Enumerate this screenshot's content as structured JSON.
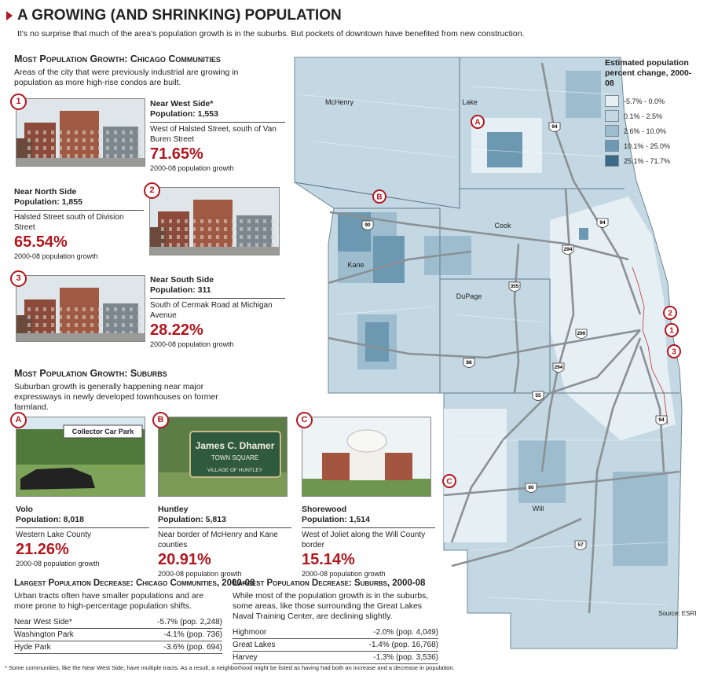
{
  "header": {
    "title": "A Growing (and Shrinking) Population",
    "subtitle": "It's no surprise that much of the area's population growth is in the suburbs. But pockets of downtown have benefited from new construction."
  },
  "chicago_growth": {
    "heading": "Most Population Growth: Chicago Communities",
    "description": "Areas of the city that were previously industrial are growing in population as more high-rise condos are built.",
    "items": [
      {
        "marker": "1",
        "name": "Near West Side*",
        "population": "Population: 1,553",
        "location": "West of Halsted Street, south of Van Buren Street",
        "growth": "71.65%",
        "growth_label": "2000-08 population growth"
      },
      {
        "marker": "2",
        "name": "Near North Side",
        "population": "Population: 1,855",
        "location": "Halsted Street south of Division Street",
        "growth": "65.54%",
        "growth_label": "2000-08 population growth"
      },
      {
        "marker": "3",
        "name": "Near South Side",
        "population": "Population: 311",
        "location": "South of Cermak Road at Michigan Avenue",
        "growth": "28.22%",
        "growth_label": "2000-08 population growth"
      }
    ]
  },
  "suburb_growth": {
    "heading": "Most Population Growth: Suburbs",
    "description": "Suburban growth is generally happening near major expressways in newly developed townhouses on former farmland.",
    "items": [
      {
        "marker": "A",
        "photo_text": [
          "Collector Car Park"
        ],
        "name": "Volo",
        "population": "Population: 8,018",
        "location": "Western Lake County",
        "growth": "21.26%",
        "growth_label": "2000-08 population growth"
      },
      {
        "marker": "B",
        "photo_text": [
          "James C. Dhamer",
          "TOWN SQUARE",
          "VILLAGE OF HUNTLEY"
        ],
        "name": "Huntley",
        "population": "Population: 5,813",
        "location": "Near border of McHenry and Kane counties",
        "growth": "20.91%",
        "growth_label": "2000-08 population growth"
      },
      {
        "marker": "C",
        "photo_text": [],
        "name": "Shorewood",
        "population": "Population: 1,514",
        "location": "West of Joliet along the Will County border",
        "growth": "15.14%",
        "growth_label": "2000-08 population growth"
      }
    ]
  },
  "chicago_decrease": {
    "heading": "Largest Population Decrease: Chicago Communities, 2000-08",
    "description": "Urban tracts often have smaller populations and are more prone to high-percentage population shifts.",
    "rows": [
      [
        "Near West Side*",
        "-5.7% (pop. 2,248)"
      ],
      [
        "Washington Park",
        "-4.1% (pop. 736)"
      ],
      [
        "Hyde Park",
        "-3.6% (pop. 694)"
      ]
    ]
  },
  "suburb_decrease": {
    "heading": "Largest Population Decrease: Suburbs, 2000-08",
    "description": "While most of the population growth is in the suburbs, some areas, like those surrounding the Great Lakes Naval Training Center, are declining slightly.",
    "rows": [
      [
        "Highmoor",
        "-2.0% (pop. 4,049)"
      ],
      [
        "Great Lakes",
        "-1.4% (pop. 16,768)"
      ],
      [
        "Harvey",
        "-1.3% (pop. 3,536)"
      ]
    ]
  },
  "map": {
    "legend_title": "Estimated population percent change, 2000-08",
    "legend": [
      {
        "label": "-5.7% - 0.0%",
        "color": "#e6eff4"
      },
      {
        "label": "0.1% - 2.5%",
        "color": "#c3d8e3"
      },
      {
        "label": "2.6% - 10.0%",
        "color": "#9dbdcf"
      },
      {
        "label": "10.1% - 25.0%",
        "color": "#6c98b1"
      },
      {
        "label": "25.1% - 71.7%",
        "color": "#3b6a86"
      }
    ],
    "counties": [
      "McHenry",
      "Lake",
      "Cook",
      "Kane",
      "DuPage",
      "Will"
    ],
    "highways": [
      "94",
      "90",
      "94",
      "294",
      "355",
      "290",
      "88",
      "294",
      "55",
      "94",
      "80",
      "57"
    ],
    "markers": [
      "A",
      "B",
      "C",
      "2",
      "1",
      "3"
    ],
    "source": "Source: ESRI"
  },
  "footnote": "* Some communities, like the Near West Side, have multiple tracts. As a result, a neighborhood might be listed as having had both an increase and a decrease in population."
}
